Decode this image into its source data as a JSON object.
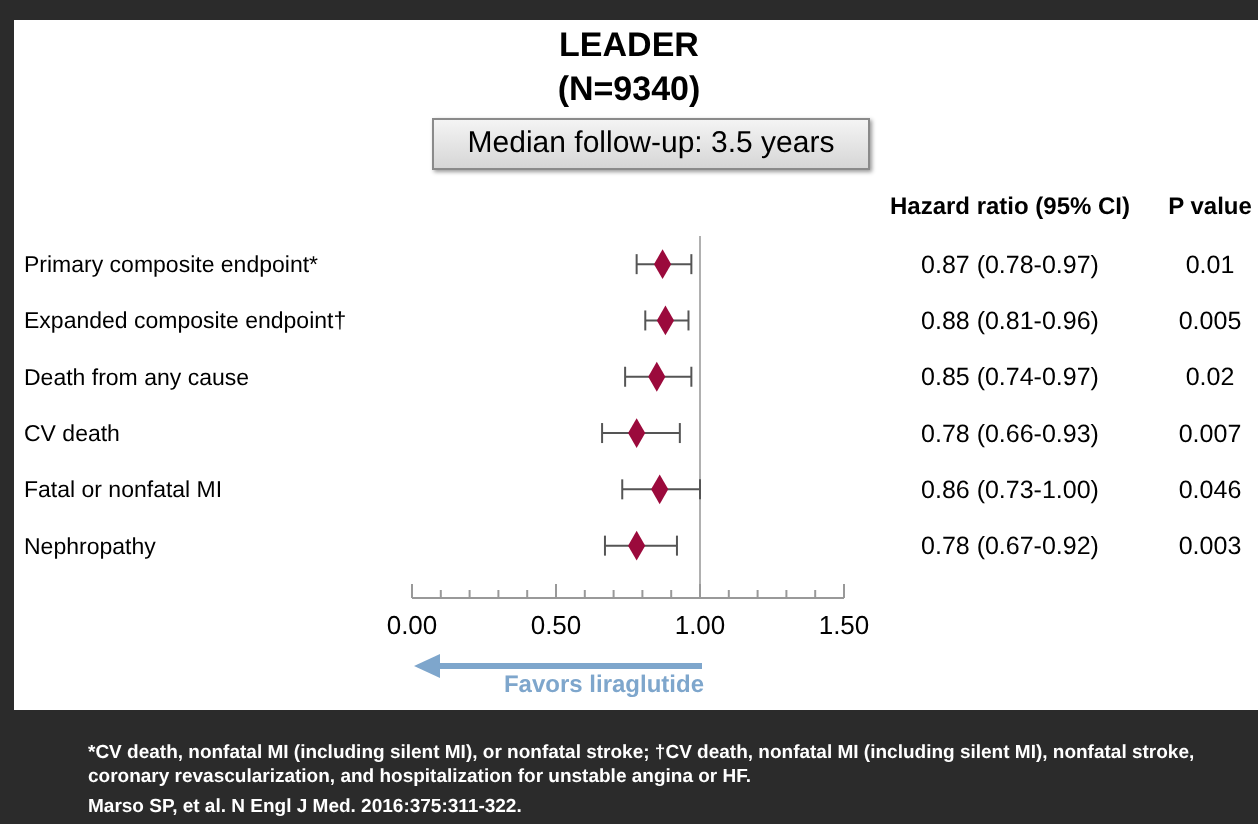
{
  "chart_data": {
    "type": "scatter",
    "orientation": "horizontal",
    "title": "LEADER",
    "subtitle": "(N=9340)",
    "categories": [
      "Primary composite endpoint*",
      "Expanded composite endpoint†",
      "Death from any cause",
      "CV death",
      "Fatal or nonfatal MI",
      "Nephropathy"
    ],
    "series": [
      {
        "color": "#9b0a3c",
        "values": [
          0.87,
          0.88,
          0.85,
          0.78,
          0.86,
          0.78
        ],
        "errors": [
          [
            0.78,
            0.97
          ],
          [
            0.81,
            0.96
          ],
          [
            0.74,
            0.97
          ],
          [
            0.66,
            0.93
          ],
          [
            0.73,
            1.0
          ],
          [
            0.67,
            0.92
          ]
        ],
        "value_labels": [
          "0.87 (0.78-0.97)",
          "0.88 (0.81-0.96)",
          "0.85 (0.74-0.97)",
          "0.78 (0.66-0.93)",
          "0.86 (0.73-1.00)",
          "0.78 (0.67-0.92)"
        ]
      }
    ],
    "marker": "diamond",
    "xlim": [
      0,
      1.5
    ],
    "xticks": [
      {
        "value": 0,
        "label": "0.00"
      },
      {
        "value": 0.1,
        "label": null
      },
      {
        "value": 0.2,
        "label": null
      },
      {
        "value": 0.3,
        "label": null
      },
      {
        "value": 0.4,
        "label": null
      },
      {
        "value": 0.5,
        "label": "0.50"
      },
      {
        "value": 0.6,
        "label": null
      },
      {
        "value": 0.7,
        "label": null
      },
      {
        "value": 0.8,
        "label": null
      },
      {
        "value": 0.9,
        "label": null
      },
      {
        "value": 1,
        "label": "1.00"
      },
      {
        "value": 1.1,
        "label": null
      },
      {
        "value": 1.2,
        "label": null
      },
      {
        "value": 1.3,
        "label": null
      },
      {
        "value": 1.4,
        "label": null
      },
      {
        "value": 1.5,
        "label": "1.50"
      }
    ],
    "ref_lines": [
      {
        "axis": "x",
        "value": 1,
        "color": "#b0b0b0"
      }
    ],
    "grid": false,
    "legend": false,
    "annotations": [
      "Median follow-up: 3.5 years",
      "Hazard ratio (95% CI)",
      "P value",
      "0.01",
      "0.005",
      "0.02",
      "0.007",
      "0.046",
      "0.003",
      "Favors liraglutide",
      "*CV death, nonfatal MI (including silent MI), or nonfatal stroke; †CV death, nonfatal MI (including silent MI), nonfatal stroke, coronary revascularization, and hospitalization for unstable angina or HF.",
      "Marso SP, et al. N Engl J Med. 2016:375:311-322."
    ]
  }
}
